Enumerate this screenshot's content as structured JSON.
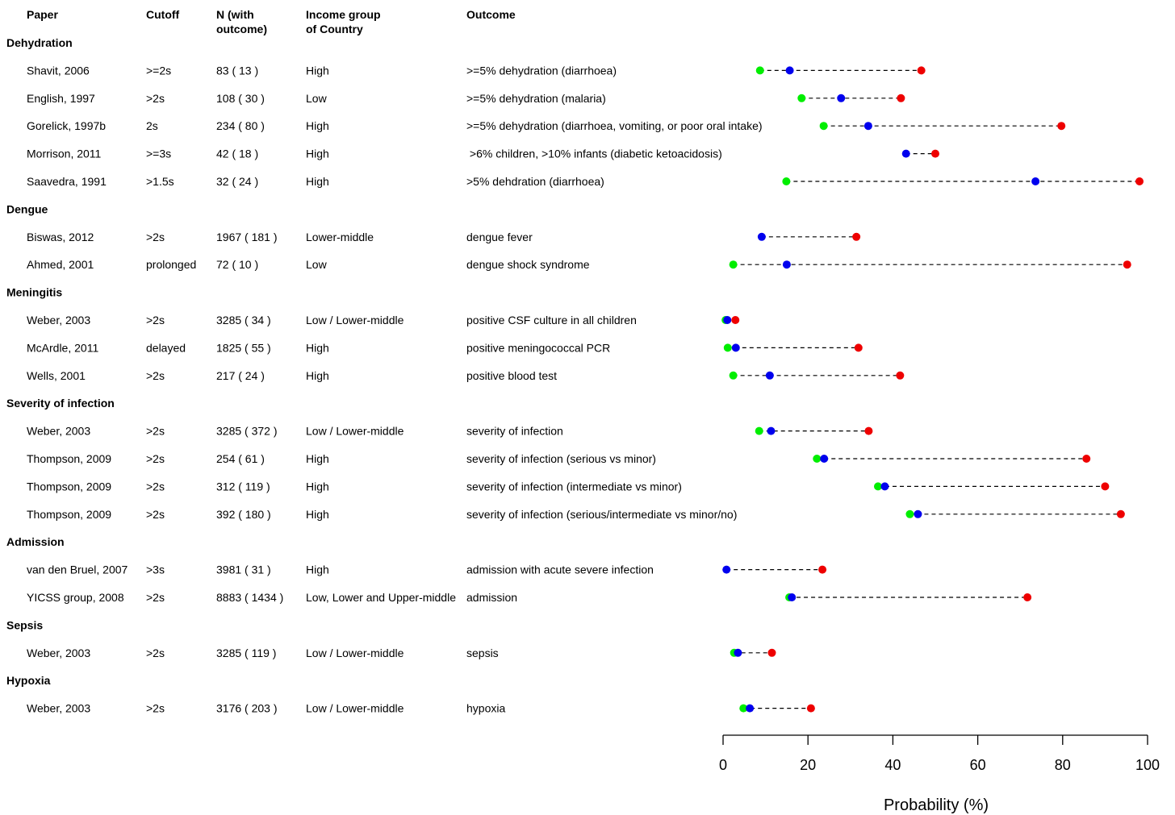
{
  "headers": {
    "paper": "Paper",
    "cutoff": "Cutoff",
    "n": [
      "N (with",
      "outcome)"
    ],
    "income": [
      "Income group",
      "of Country"
    ],
    "outcome": "Outcome"
  },
  "colors": {
    "low": "#00ee00",
    "mid": "#0000ee",
    "high": "#ee0000",
    "line": "#000000"
  },
  "chart_data": {
    "type": "scatter",
    "title": "",
    "xlabel": "Probability (%)",
    "xlim": [
      0,
      100
    ],
    "xticks": [
      0,
      20,
      40,
      60,
      80,
      100
    ],
    "xtick_labels": [
      "0",
      "20",
      "40",
      "60",
      "80",
      "100"
    ],
    "series": [
      {
        "color": "#00ee00"
      },
      {
        "color": "#0000ee"
      },
      {
        "color": "#ee0000"
      }
    ],
    "groups": [
      {
        "label": "Dehydration",
        "rows": [
          {
            "paper": "Shavit, 2006",
            "cutoff": ">=2s",
            "n": "83 ( 13 )",
            "income": "High",
            "outcome": ">=5% dehydration (diarrhoea)",
            "low": 8.7,
            "mid": 15.7,
            "high": 46.7
          },
          {
            "paper": "English, 1997",
            "cutoff": ">2s",
            "n": "108 ( 30 )",
            "income": "Low",
            "outcome": ">=5% dehydration (malaria)",
            "low": 18.5,
            "mid": 27.8,
            "high": 41.9
          },
          {
            "paper": "Gorelick, 1997b",
            "cutoff": "2s",
            "n": "234 ( 80 )",
            "income": "High",
            "outcome": ">=5% dehydration (diarrhoea, vomiting, or poor oral intake)",
            "low": 23.7,
            "mid": 34.2,
            "high": 79.7
          },
          {
            "paper": "Morrison, 2011",
            "cutoff": ">=3s",
            "n": "42 ( 18 )",
            "income": "High",
            "outcome": " >6% children, >10% infants (diabetic ketoacidosis)",
            "low": null,
            "mid": 43.1,
            "high": 50.0
          },
          {
            "paper": "Saavedra, 1991",
            "cutoff": ">1.5s",
            "n": "32 ( 24 )",
            "income": "High",
            "outcome": ">5% dehdration (diarrhoea)",
            "low": 14.9,
            "mid": 73.6,
            "high": 98.1
          }
        ]
      },
      {
        "label": "Dengue",
        "rows": [
          {
            "paper": "Biswas, 2012",
            "cutoff": ">2s",
            "n": "1967 ( 181 )",
            "income": "Lower-middle",
            "outcome": "dengue fever",
            "low": null,
            "mid": 9.1,
            "high": 31.4
          },
          {
            "paper": "Ahmed, 2001",
            "cutoff": "prolonged",
            "n": "72 ( 10 )",
            "income": "Low",
            "outcome": "dengue shock syndrome",
            "low": 2.4,
            "mid": 15.0,
            "high": 95.2
          }
        ]
      },
      {
        "label": "Meningitis",
        "rows": [
          {
            "paper": "Weber, 2003",
            "cutoff": ">2s",
            "n": "3285 ( 34 )",
            "income": "Low / Lower-middle",
            "outcome": "positive CSF culture in all children",
            "low": 0.6,
            "mid": 1.0,
            "high": 2.9
          },
          {
            "paper": "McArdle, 2011",
            "cutoff": "delayed",
            "n": "1825 ( 55 )",
            "income": "High",
            "outcome": "positive meningococcal PCR",
            "low": 1.1,
            "mid": 3.0,
            "high": 31.9
          },
          {
            "paper": "Wells, 2001",
            "cutoff": ">2s",
            "n": "217 ( 24 )",
            "income": "High",
            "outcome": "positive blood test",
            "low": 2.4,
            "mid": 11.0,
            "high": 41.7
          }
        ]
      },
      {
        "label": "Severity of infection",
        "rows": [
          {
            "paper": "Weber, 2003",
            "cutoff": ">2s",
            "n": "3285 ( 372 )",
            "income": "Low / Lower-middle",
            "outcome": "severity of infection",
            "low": 8.5,
            "mid": 11.3,
            "high": 34.3
          },
          {
            "paper": "Thompson, 2009",
            "cutoff": ">2s",
            "n": "254 ( 61 )",
            "income": "High",
            "outcome": "severity of infection (serious vs minor)",
            "low": 22.1,
            "mid": 23.8,
            "high": 85.6
          },
          {
            "paper": "Thompson, 2009",
            "cutoff": ">2s",
            "n": "312 ( 119 )",
            "income": "High",
            "outcome": "severity of infection (intermediate vs minor)",
            "low": 36.5,
            "mid": 38.1,
            "high": 90.0
          },
          {
            "paper": "Thompson, 2009",
            "cutoff": ">2s",
            "n": "392 ( 180 )",
            "income": "High",
            "outcome": "severity of infection (serious/intermediate vs minor/no)",
            "low": 44.0,
            "mid": 45.9,
            "high": 93.7
          }
        ]
      },
      {
        "label": "Admission",
        "rows": [
          {
            "paper": "van den Bruel, 2007",
            "cutoff": ">3s",
            "n": "3981 ( 31 )",
            "income": "High",
            "outcome": "admission with acute severe infection",
            "low": null,
            "mid": 0.8,
            "high": 23.4
          },
          {
            "paper": "YICSS group, 2008",
            "cutoff": ">2s",
            "n": "8883 ( 1434 )",
            "income": "Low, Lower and Upper-middle",
            "outcome": "admission",
            "low": 15.6,
            "mid": 16.2,
            "high": 71.7
          }
        ]
      },
      {
        "label": "Sepsis",
        "rows": [
          {
            "paper": "Weber, 2003",
            "cutoff": ">2s",
            "n": "3285 ( 119 )",
            "income": "Low / Lower-middle",
            "outcome": "sepsis",
            "low": 2.6,
            "mid": 3.5,
            "high": 11.5
          }
        ]
      },
      {
        "label": "Hypoxia",
        "rows": [
          {
            "paper": "Weber, 2003",
            "cutoff": ">2s",
            "n": "3176 ( 203 )",
            "income": "Low / Lower-middle",
            "outcome": "hypoxia",
            "low": 4.8,
            "mid": 6.3,
            "high": 20.7
          }
        ]
      }
    ]
  }
}
